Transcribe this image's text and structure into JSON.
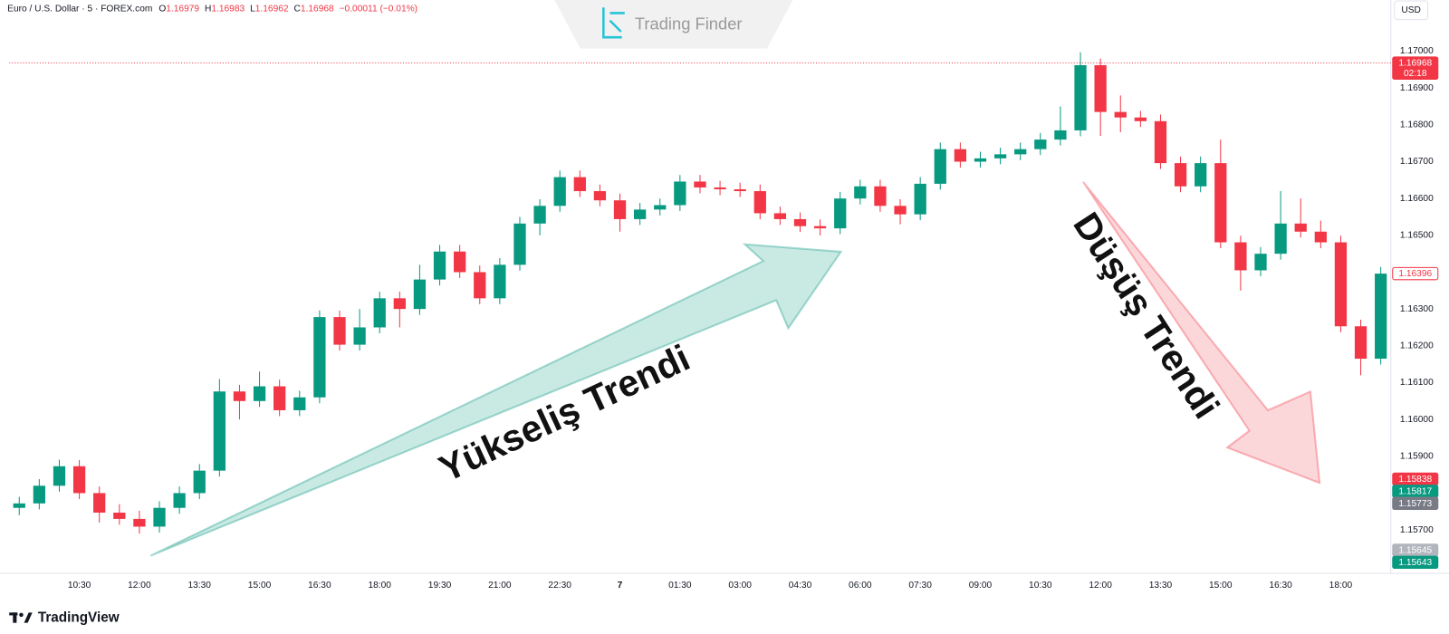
{
  "header": {
    "symbol": "Euro / U.S. Dollar · 5 · FOREX.com",
    "o_label": "O",
    "open": 1.16979,
    "h_label": "H",
    "high": 1.16983,
    "l_label": "L",
    "low": 1.16962,
    "c_label": "C",
    "close": 1.16968,
    "change": "−0.00011 (−0.01%)"
  },
  "currency": "USD",
  "watermark": "Trading Finder",
  "brand": "TradingView",
  "annotations": [
    {
      "text": "Yükseliş Trendi",
      "color": "#089981"
    },
    {
      "text": "Düşüş Trendi",
      "color": "#f23645"
    }
  ],
  "chart_data": {
    "type": "candlestick",
    "up_color": "#089981",
    "down_color": "#f23645",
    "grid": false,
    "categories": [
      null,
      null,
      null,
      "10:30",
      null,
      null,
      "12:00",
      null,
      null,
      "13:30",
      null,
      null,
      "15:00",
      null,
      null,
      "16:30",
      null,
      null,
      "18:00",
      null,
      null,
      "19:30",
      null,
      null,
      "21:00",
      null,
      null,
      "22:30",
      null,
      null,
      "7",
      null,
      null,
      "01:30",
      null,
      null,
      "03:00",
      null,
      null,
      "04:30",
      null,
      null,
      "06:00",
      null,
      null,
      "07:30",
      null,
      null,
      "09:00",
      null,
      null,
      "10:30",
      null,
      null,
      "12:00",
      null,
      null,
      "13:30",
      null,
      null,
      "15:00",
      null,
      null,
      "16:30",
      null,
      null,
      "18:00",
      null,
      null
    ],
    "open": [
      1.1576,
      1.15772,
      1.1582,
      1.15873,
      1.158,
      1.15747,
      1.1573,
      1.15709,
      1.1576,
      1.158,
      1.15861,
      1.16076,
      1.1605,
      1.1609,
      1.16025,
      1.1606,
      1.16278,
      1.16203,
      1.1625,
      1.16329,
      1.163,
      1.1638,
      1.16456,
      1.164,
      1.16329,
      1.1642,
      1.16532,
      1.1658,
      1.16658,
      1.1662,
      1.16595,
      1.16544,
      1.1657,
      1.16582,
      1.16646,
      1.1663,
      1.16625,
      1.1662,
      1.1656,
      1.16544,
      1.16525,
      1.16519,
      1.166,
      1.16633,
      1.1658,
      1.16557,
      1.1664,
      1.16734,
      1.167,
      1.16709,
      1.1672,
      1.16734,
      1.1676,
      1.16785,
      1.16962,
      1.16835,
      1.1682,
      1.1681,
      1.16696,
      1.16633,
      1.16696,
      1.16481,
      1.16405,
      1.1645,
      1.16532,
      1.1651,
      1.16481,
      1.16253,
      1.16165
    ],
    "high": [
      1.1579,
      1.15838,
      1.15891,
      1.1589,
      1.15818,
      1.1577,
      1.15752,
      1.15778,
      1.15818,
      1.15879,
      1.1611,
      1.16094,
      1.1613,
      1.16108,
      1.16078,
      1.16296,
      1.16296,
      1.163,
      1.16347,
      1.16347,
      1.1642,
      1.16474,
      1.16474,
      1.16418,
      1.16438,
      1.1655,
      1.16598,
      1.16676,
      1.16676,
      1.16638,
      1.16613,
      1.16588,
      1.166,
      1.16664,
      1.16664,
      1.16648,
      1.16643,
      1.16638,
      1.16578,
      1.16562,
      1.16543,
      1.16618,
      1.16651,
      1.16651,
      1.16598,
      1.16658,
      1.16752,
      1.16752,
      1.16727,
      1.16738,
      1.16752,
      1.16778,
      1.1685,
      1.16997,
      1.1698,
      1.1688,
      1.16838,
      1.16828,
      1.16714,
      1.16714,
      1.1676,
      1.16499,
      1.16468,
      1.1662,
      1.166,
      1.1654,
      1.16499,
      1.16271,
      1.16414
    ],
    "low": [
      1.1574,
      1.15756,
      1.15804,
      1.15784,
      1.1572,
      1.15714,
      1.1569,
      1.15693,
      1.15744,
      1.15784,
      1.15845,
      1.16,
      1.16034,
      1.16009,
      1.16009,
      1.16044,
      1.16187,
      1.16187,
      1.16234,
      1.1625,
      1.16284,
      1.16364,
      1.16384,
      1.16313,
      1.16313,
      1.16404,
      1.165,
      1.16564,
      1.16604,
      1.16579,
      1.1651,
      1.16528,
      1.16554,
      1.16566,
      1.16614,
      1.16609,
      1.16604,
      1.16544,
      1.16528,
      1.16509,
      1.165,
      1.16503,
      1.16584,
      1.16564,
      1.1653,
      1.16541,
      1.16624,
      1.16684,
      1.16684,
      1.16693,
      1.16704,
      1.16718,
      1.16744,
      1.16769,
      1.1677,
      1.1678,
      1.16794,
      1.1668,
      1.16617,
      1.16617,
      1.16465,
      1.1635,
      1.16389,
      1.16434,
      1.16494,
      1.16465,
      1.16237,
      1.1612,
      1.16149
    ],
    "close": [
      1.15772,
      1.1582,
      1.15873,
      1.158,
      1.15747,
      1.1573,
      1.15709,
      1.1576,
      1.158,
      1.15861,
      1.16076,
      1.1605,
      1.1609,
      1.16025,
      1.1606,
      1.16278,
      1.16203,
      1.1625,
      1.16329,
      1.163,
      1.1638,
      1.16456,
      1.164,
      1.16329,
      1.1642,
      1.16532,
      1.1658,
      1.16658,
      1.1662,
      1.16595,
      1.16544,
      1.1657,
      1.16582,
      1.16646,
      1.1663,
      1.16625,
      1.1662,
      1.1656,
      1.16544,
      1.16525,
      1.16519,
      1.166,
      1.16633,
      1.1658,
      1.16557,
      1.1664,
      1.16734,
      1.167,
      1.16709,
      1.1672,
      1.16734,
      1.1676,
      1.16785,
      1.16962,
      1.16835,
      1.1682,
      1.1681,
      1.16696,
      1.16633,
      1.16696,
      1.16481,
      1.16405,
      1.1645,
      1.16532,
      1.1651,
      1.16481,
      1.16253,
      1.16165,
      1.16396
    ],
    "ylim": [
      1.15582,
      1.17139
    ],
    "yticks": [
      {
        "value": 1.157,
        "label": "1.15700"
      },
      {
        "value": 1.158,
        "label": "1.15800"
      },
      {
        "value": 1.159,
        "label": "1.15900"
      },
      {
        "value": 1.16,
        "label": "1.16000"
      },
      {
        "value": 1.161,
        "label": "1.16100"
      },
      {
        "value": 1.162,
        "label": "1.16200"
      },
      {
        "value": 1.163,
        "label": "1.16300"
      },
      {
        "value": 1.164,
        "label": "1.16400"
      },
      {
        "value": 1.165,
        "label": "1.16500"
      },
      {
        "value": 1.166,
        "label": "1.16600"
      },
      {
        "value": 1.167,
        "label": "1.16700"
      },
      {
        "value": 1.168,
        "label": "1.16800"
      },
      {
        "value": 1.169,
        "label": "1.16900"
      },
      {
        "value": 1.17,
        "label": "1.17000"
      }
    ],
    "price_markers": [
      {
        "value": 1.16968,
        "color": "#f23645",
        "countdown": "02:18"
      },
      {
        "value": 1.16396,
        "color": "#f23645",
        "outline": true
      },
      {
        "value": 1.15838,
        "color": "#f23645"
      },
      {
        "value": 1.15817,
        "color": "#089981"
      },
      {
        "value": 1.15773,
        "color": "#787b86"
      },
      {
        "value": 1.15645,
        "color": "#b2b5be"
      },
      {
        "value": 1.15643,
        "color": "#089981"
      }
    ]
  }
}
